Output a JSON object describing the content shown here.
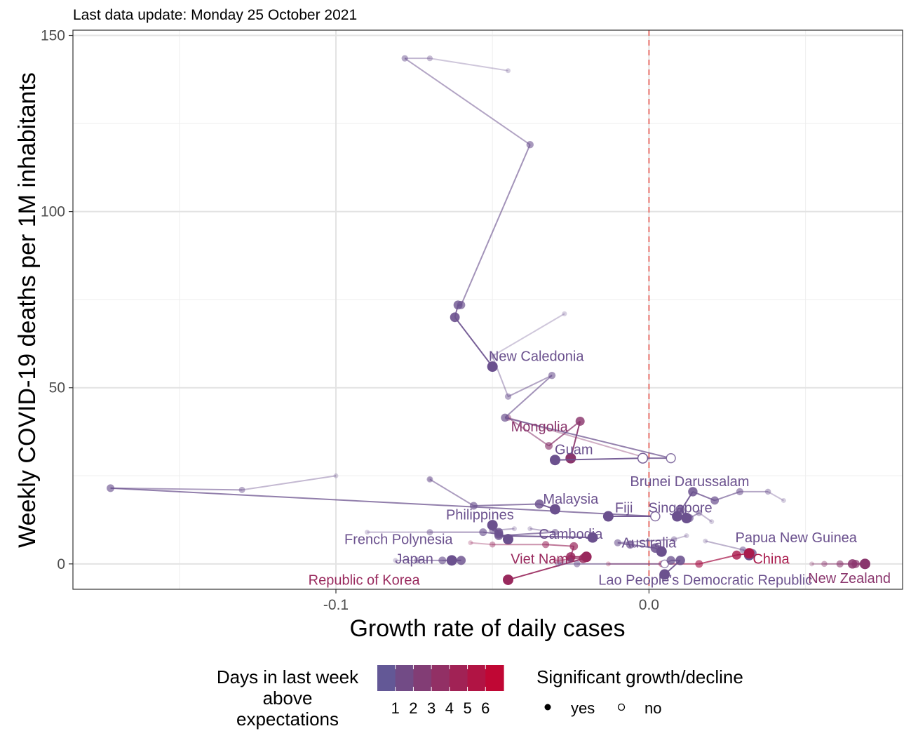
{
  "chart_data": {
    "type": "scatter",
    "subtitle": "Last data update: Monday 25 October 2021",
    "xlabel": "Growth rate of daily cases",
    "ylabel": "Weekly COVID-19 deaths per 1M inhabitants",
    "xlim": [
      -0.184,
      0.081
    ],
    "ylim": [
      -7.2,
      151.5
    ],
    "x_ticks": [
      -0.1,
      0.0
    ],
    "x_tick_labels": [
      "-0.1",
      "0.0"
    ],
    "y_ticks": [
      0,
      50,
      100,
      150
    ],
    "y_tick_labels": [
      "0",
      "50",
      "100",
      "150"
    ],
    "grid": true,
    "reference_line": {
      "x": 0,
      "color": "#e8736c",
      "style": "dashed"
    },
    "color_scale": {
      "low": "#5b5f9e",
      "high": "#c8002c",
      "min": 0,
      "max": 7
    },
    "legend": {
      "color_title": "Days in last week\nabove\nexpectations",
      "color_ticks": [
        "1",
        "2",
        "3",
        "4",
        "5",
        "6"
      ],
      "shape_title": "Significant growth/decline",
      "shape_items": [
        {
          "label": "yes",
          "filled": true
        },
        {
          "label": "no",
          "filled": false
        }
      ],
      "position": "bottom"
    },
    "series": [
      {
        "name": "New Caledonia",
        "days": 1,
        "label_pos": [
          -0.036,
          59
        ],
        "points": [
          [
            -0.045,
            140,
            0,
            1
          ],
          [
            -0.07,
            143.5,
            0,
            1
          ],
          [
            -0.078,
            143.5,
            0,
            1
          ],
          [
            -0.038,
            119,
            1,
            1
          ],
          [
            -0.06,
            73.5,
            1,
            1
          ],
          [
            -0.061,
            73.5,
            1,
            1
          ],
          [
            -0.062,
            70,
            1,
            1
          ],
          [
            -0.05,
            56,
            1,
            1
          ]
        ]
      },
      {
        "name": "Mongolia",
        "days": 3,
        "label_pos": [
          -0.035,
          39
        ],
        "points": [
          [
            -0.0005,
            30,
            0,
            1
          ],
          [
            -0.045,
            41.5,
            1,
            1
          ],
          [
            -0.032,
            33.5,
            1,
            1
          ],
          [
            -0.022,
            40.5,
            1,
            1
          ],
          [
            -0.025,
            30,
            1,
            1
          ]
        ]
      },
      {
        "name": "Guam",
        "days": 1,
        "label_pos": [
          -0.024,
          32.5
        ],
        "points": [
          [
            -0.027,
            71,
            0,
            1
          ],
          [
            -0.05,
            59,
            0,
            1
          ],
          [
            -0.045,
            47.5,
            0,
            1
          ],
          [
            -0.031,
            53.5,
            1,
            1
          ],
          [
            -0.046,
            41.5,
            1,
            1
          ],
          [
            0.007,
            30,
            1,
            0
          ],
          [
            -0.002,
            30,
            1,
            0
          ],
          [
            -0.03,
            29.5,
            1,
            1
          ]
        ]
      },
      {
        "name": "Brunei Darussalam",
        "days": 1,
        "label_pos": [
          0.013,
          23.5
        ],
        "points": [
          [
            0.043,
            18,
            0,
            1
          ],
          [
            0.038,
            20.5,
            0,
            1
          ],
          [
            0.029,
            20.5,
            1,
            1
          ],
          [
            0.021,
            18,
            1,
            1
          ],
          [
            0.014,
            20.5,
            1,
            1
          ],
          [
            0.009,
            13.5,
            1,
            1
          ]
        ]
      },
      {
        "name": "Singapore",
        "days": 1,
        "label_pos": [
          0.01,
          16
        ],
        "points": [
          [
            0.02,
            12,
            0,
            1
          ],
          [
            0.016,
            14.5,
            0,
            1
          ],
          [
            0.013,
            13,
            1,
            1
          ],
          [
            0.01,
            15.5,
            1,
            1
          ],
          [
            0.012,
            13,
            1,
            1
          ]
        ]
      },
      {
        "name": "Fiji",
        "days": 1,
        "label_pos": [
          -0.008,
          16
        ],
        "points": [
          [
            -0.1,
            25,
            0,
            1
          ],
          [
            -0.13,
            21,
            0,
            1
          ],
          [
            -0.172,
            21.5,
            1,
            1
          ],
          [
            0.002,
            13.5,
            1,
            0
          ],
          [
            -0.013,
            13.5,
            1,
            1
          ]
        ]
      },
      {
        "name": "Malaysia",
        "days": 1,
        "label_pos": [
          -0.025,
          18.5
        ],
        "points": [
          [
            -0.07,
            24,
            0,
            1
          ],
          [
            -0.07,
            24,
            0,
            1
          ],
          [
            -0.056,
            16.5,
            1,
            1
          ],
          [
            -0.035,
            17,
            1,
            1
          ],
          [
            -0.03,
            15.5,
            1,
            1
          ]
        ]
      },
      {
        "name": "Philippines",
        "days": 1,
        "label_pos": [
          -0.054,
          14
        ],
        "points": [
          [
            -0.043,
            10,
            0,
            1
          ],
          [
            -0.05,
            9.5,
            1,
            1
          ],
          [
            -0.048,
            9,
            1,
            1
          ],
          [
            -0.05,
            11,
            1,
            1
          ]
        ]
      },
      {
        "name": "Cambodia",
        "days": 1,
        "label_pos": [
          -0.025,
          8.5
        ],
        "points": [
          [
            -0.038,
            10,
            0,
            1
          ],
          [
            -0.03,
            9,
            0,
            1
          ],
          [
            -0.048,
            8,
            1,
            1
          ],
          [
            -0.018,
            7.5,
            1,
            1
          ]
        ]
      },
      {
        "name": "French Polynesia",
        "days": 1,
        "label_pos": [
          -0.08,
          7
        ],
        "points": [
          [
            -0.09,
            9,
            0,
            1
          ],
          [
            -0.07,
            9,
            0,
            1
          ],
          [
            -0.053,
            9,
            1,
            1
          ],
          [
            -0.048,
            8.5,
            1,
            1
          ],
          [
            -0.045,
            7,
            1,
            1
          ]
        ]
      },
      {
        "name": "Australia",
        "days": 1,
        "label_pos": [
          0.0,
          6
        ],
        "points": [
          [
            0.012,
            8,
            0,
            1
          ],
          [
            0.008,
            7,
            0,
            1
          ],
          [
            -0.01,
            6,
            1,
            1
          ],
          [
            -0.006,
            5.5,
            1,
            1
          ],
          [
            0.002,
            4.5,
            1,
            1
          ],
          [
            0.004,
            3.5,
            1,
            1
          ]
        ]
      },
      {
        "name": "Papua New Guinea",
        "days": 1,
        "label_pos": [
          0.047,
          7.5
        ],
        "points": [
          [
            0.018,
            6.5,
            1,
            1
          ],
          [
            0.03,
            4,
            1,
            1
          ],
          [
            0.033,
            3,
            1,
            1
          ],
          [
            0.032,
            2.5,
            1,
            1
          ]
        ]
      },
      {
        "name": "China",
        "days": 5,
        "label_pos": [
          0.039,
          1.5
        ],
        "points": [
          [
            -0.013,
            0,
            1,
            1
          ],
          [
            0.004,
            0,
            1,
            1
          ],
          [
            0.016,
            0,
            1,
            1
          ],
          [
            0.028,
            2.5,
            1,
            1
          ],
          [
            0.032,
            3,
            1,
            1
          ]
        ]
      },
      {
        "name": "Viet Nam",
        "days": 4,
        "label_pos": [
          -0.035,
          1.5
        ],
        "points": [
          [
            -0.057,
            6,
            0,
            1
          ],
          [
            -0.05,
            5.5,
            0,
            1
          ],
          [
            -0.033,
            5.5,
            1,
            1
          ],
          [
            -0.024,
            5,
            1,
            1
          ],
          [
            -0.025,
            2,
            1,
            1
          ],
          [
            -0.02,
            2,
            1,
            1
          ]
        ]
      },
      {
        "name": "Japan",
        "days": 1,
        "label_pos": [
          -0.075,
          1.5
        ],
        "points": [
          [
            -0.081,
            1,
            0,
            1
          ],
          [
            -0.074,
            1,
            0,
            1
          ],
          [
            -0.066,
            1,
            1,
            1
          ],
          [
            -0.06,
            1,
            1,
            1
          ],
          [
            -0.063,
            1,
            1,
            1
          ]
        ]
      },
      {
        "name": "Republic of Korea",
        "days": 4,
        "label_pos": [
          -0.091,
          -4.5
        ],
        "points": [
          [
            -0.03,
            1,
            0,
            1
          ],
          [
            -0.028,
            1,
            1,
            1
          ],
          [
            -0.025,
            1.5,
            1,
            1
          ],
          [
            -0.021,
            1.5,
            1,
            1
          ],
          [
            -0.045,
            -4.5,
            1,
            1
          ]
        ]
      },
      {
        "name": "Lao People's Democratic Republic",
        "days": 1,
        "label_pos": [
          0.018,
          -4.5
        ],
        "points": [
          [
            -0.025,
            1,
            0,
            1
          ],
          [
            -0.029,
            0,
            1,
            1
          ],
          [
            -0.023,
            0,
            1,
            1
          ],
          [
            0.005,
            0,
            1,
            0
          ],
          [
            0.007,
            1,
            1,
            1
          ],
          [
            0.01,
            1,
            1,
            1
          ],
          [
            0.005,
            -3,
            1,
            1
          ]
        ]
      },
      {
        "name": "New Zealand",
        "days": 3,
        "label_pos": [
          0.064,
          -4
        ],
        "points": [
          [
            0.052,
            0,
            0,
            1
          ],
          [
            0.056,
            0,
            0,
            1
          ],
          [
            0.061,
            0,
            1,
            1
          ],
          [
            0.066,
            0,
            1,
            1
          ],
          [
            0.065,
            0,
            1,
            1
          ],
          [
            0.069,
            0,
            1,
            1
          ]
        ]
      }
    ]
  }
}
